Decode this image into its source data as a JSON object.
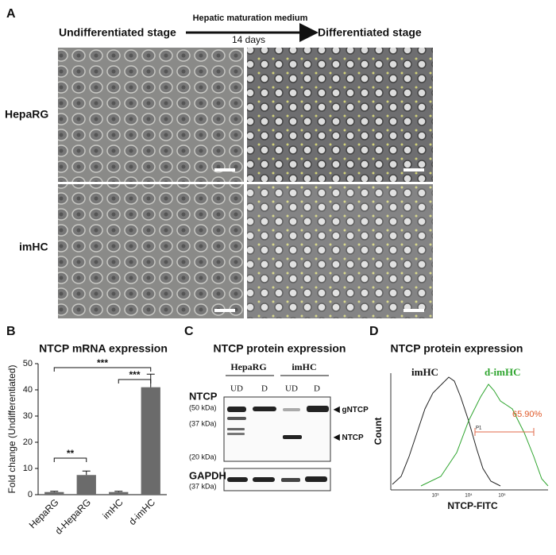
{
  "panel_a": {
    "label": "A",
    "arrow_title": "Hepatic maturation medium",
    "left_stage": "Undifferentiated stage",
    "duration": "14 days",
    "right_stage": "Differentiated stage",
    "rows": [
      "HepaRG",
      "imHC"
    ]
  },
  "chart_data": {
    "type": "bar",
    "panel_label": "B",
    "title": "NTCP mRNA expression",
    "y_label": "Fold change (Undifferentiated)",
    "categories": [
      "HepaRG",
      "d-HepaRG",
      "imHC",
      "d-imHC"
    ],
    "values": [
      1,
      7.5,
      1,
      41
    ],
    "errors": [
      0.3,
      1.5,
      0.3,
      5
    ],
    "color": "#6b6b6b",
    "ylim": [
      0,
      50
    ],
    "yticks": [
      0,
      10,
      20,
      30,
      40,
      50
    ],
    "significance": [
      "**",
      "***",
      "***"
    ]
  },
  "panel_c": {
    "label": "C",
    "title": "NTCP protein expression",
    "groups": [
      "HepaRG",
      "imHC"
    ],
    "lanes": [
      "UD",
      "D",
      "UD",
      "D"
    ],
    "target": "NTCP",
    "markers": [
      "(50 kDa)",
      "(37 kDa)",
      "(20 kDa)"
    ],
    "bands": [
      "gNTCP",
      "NTCP"
    ],
    "control": "GAPDH",
    "control_marker": "(37 kDa)"
  },
  "panel_d": {
    "label": "D",
    "title": "NTCP protein expression",
    "series_names": [
      "imHC",
      "d-imHC"
    ],
    "gate_value": "65.90%",
    "gate_name": "P1",
    "x_label": "NTCP-FITC",
    "y_label": "Count",
    "x_ticks": [
      "10³",
      "10⁴",
      "10⁵"
    ]
  }
}
